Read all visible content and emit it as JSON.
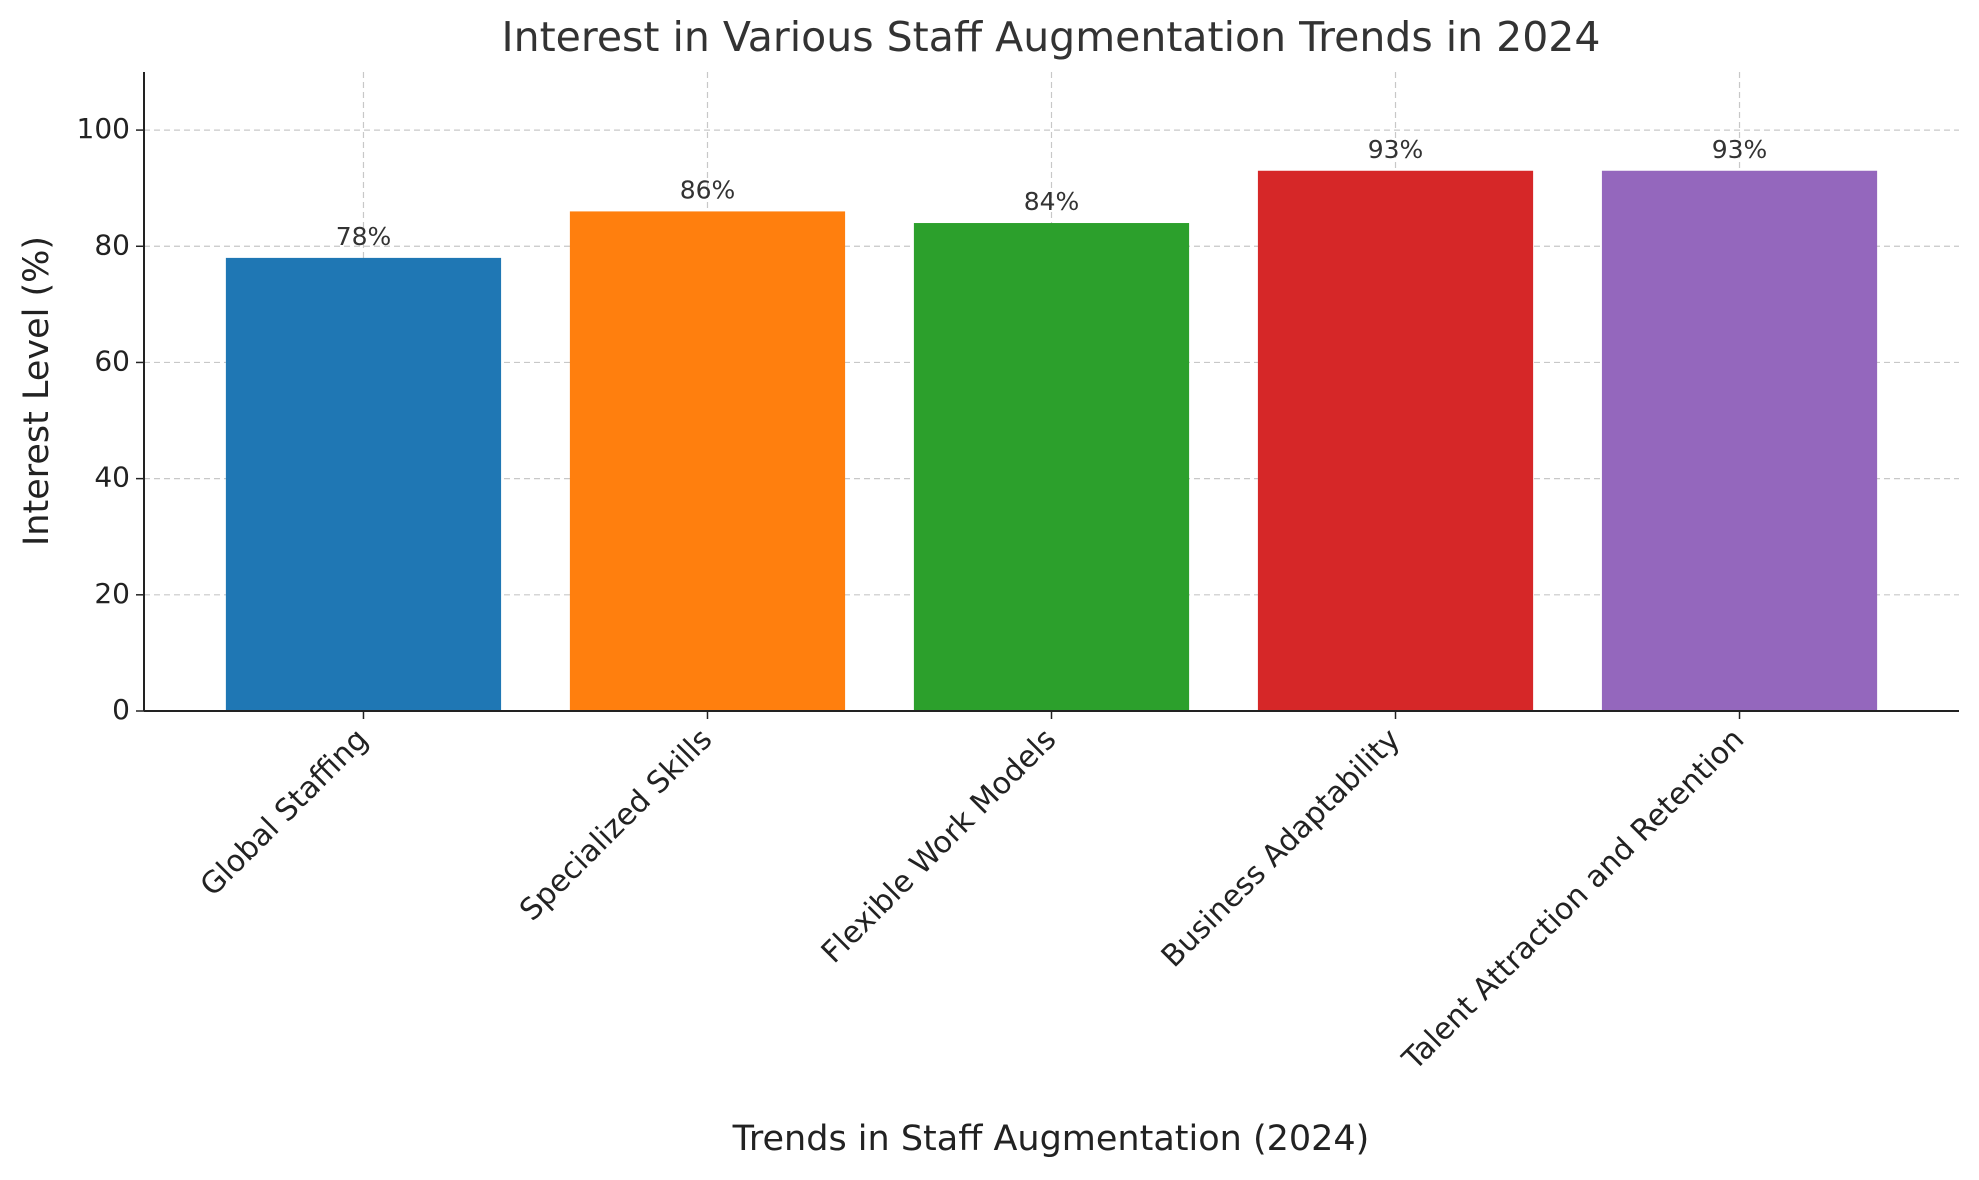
{
  "chart_data": {
    "type": "bar",
    "title": "Interest in Various Staff Augmentation Trends in 2024",
    "x_label": "Trends in Staff Augmentation (2024)",
    "y_label": "Interest Level (%)",
    "categories": [
      "Global Staffing",
      "Specialized Skills",
      "Flexible Work Models",
      "Business Adaptability",
      "Talent Attraction and Retention"
    ],
    "values": [
      78,
      86,
      84,
      93,
      93
    ],
    "value_labels": [
      "78%",
      "86%",
      "84%",
      "93%",
      "93%"
    ],
    "colors": [
      "#1f77b4",
      "#ff7f0e",
      "#2ca02c",
      "#d62728",
      "#9467bd"
    ],
    "ylim": [
      0,
      110
    ],
    "yticks": [
      0,
      20,
      40,
      60,
      80,
      100
    ],
    "grid": true
  }
}
